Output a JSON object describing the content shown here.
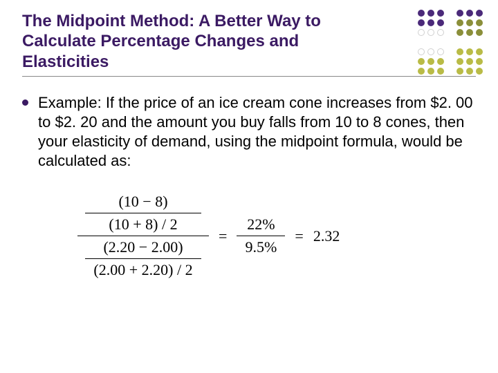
{
  "colors": {
    "title": "#3b1a63",
    "bullet": "#3b1a63",
    "motif_purple": "#4b2a7a",
    "motif_yellow": "#b9bb46",
    "motif_olive": "#8b8f3a",
    "motif_grey": "#d0d0d0"
  },
  "title": "The Midpoint Method: A Better Way to Calculate Percentage Changes and Elasticities",
  "body": "Example: If the price of an ice cream cone increases from $2. 00 to $2. 20 and the amount you buy falls from 10 to 8 cones, then your elasticity of demand, using the midpoint formula, would be calculated as:",
  "formula": {
    "top_num": "(10 − 8)",
    "top_den": "(10 + 8) / 2",
    "bot_num": "(2.20 − 2.00)",
    "bot_den": "(2.00 + 2.20) / 2",
    "rhs_num": "22%",
    "rhs_den": "9.5%",
    "result": "2.32",
    "eq": "="
  },
  "motif": {
    "rows": 7,
    "cols": 7,
    "pattern": [
      [
        "p",
        "p",
        "p",
        "e",
        "p",
        "p",
        "p"
      ],
      [
        "p",
        "p",
        "p",
        "e",
        "o",
        "o",
        "o"
      ],
      [
        "g",
        "g",
        "g",
        "e",
        "o",
        "o",
        "o"
      ],
      [
        "e",
        "e",
        "e",
        "e",
        "e",
        "e",
        "e"
      ],
      [
        "g",
        "g",
        "g",
        "e",
        "y",
        "y",
        "y"
      ],
      [
        "y",
        "y",
        "y",
        "e",
        "y",
        "y",
        "y"
      ],
      [
        "y",
        "y",
        "y",
        "e",
        "y",
        "y",
        "y"
      ]
    ]
  }
}
